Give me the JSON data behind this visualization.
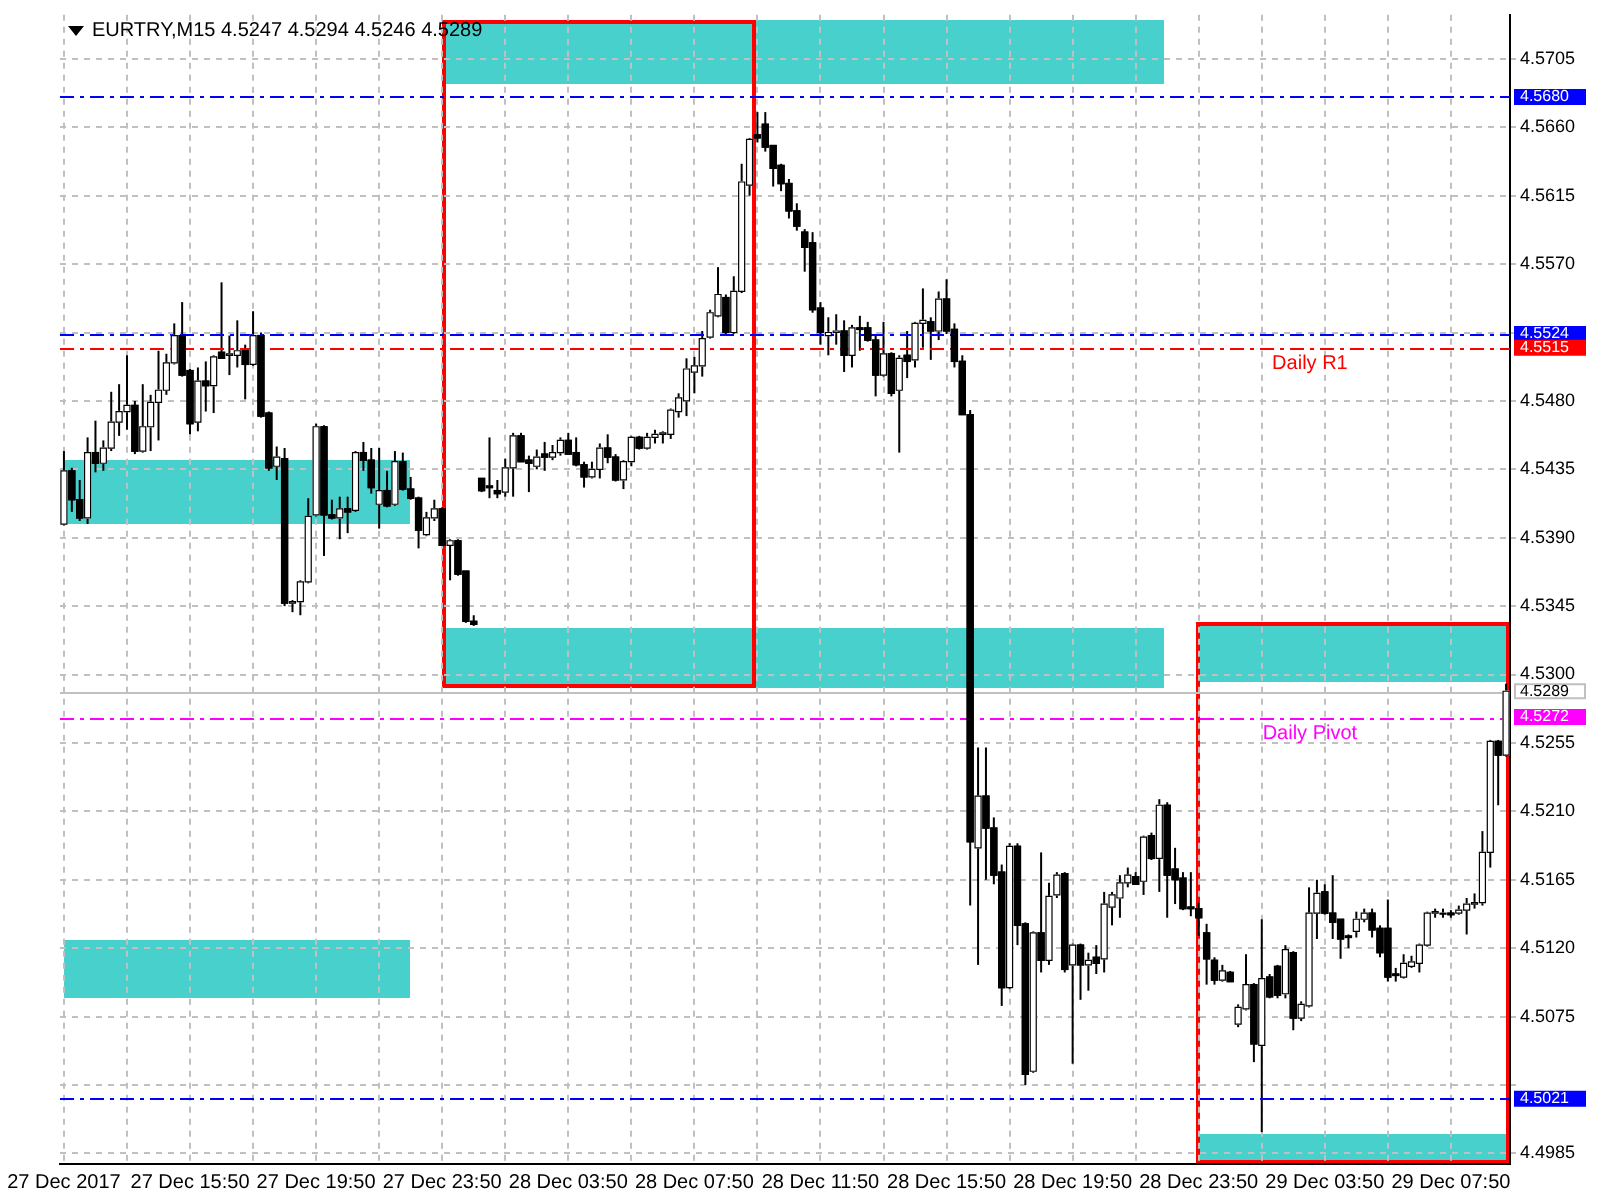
{
  "chart_data": {
    "type": "candlestick",
    "title": "EURTRY,M15 4.5247 4.5294 4.5246 4.5289",
    "color": "#000000",
    "grid": true,
    "categories": [
      "27 Dec 2017",
      null,
      null,
      null,
      null,
      null,
      null,
      null,
      null,
      null,
      null,
      null,
      null,
      null,
      null,
      null,
      "27 Dec 15:50",
      null,
      null,
      null,
      null,
      null,
      null,
      null,
      null,
      null,
      null,
      null,
      null,
      null,
      null,
      null,
      "27 Dec 19:50",
      null,
      null,
      null,
      null,
      null,
      null,
      null,
      null,
      null,
      null,
      null,
      null,
      null,
      null,
      null,
      "27 Dec 23:50",
      null,
      null,
      null,
      null,
      null,
      null,
      null,
      null,
      null,
      null,
      null,
      null,
      null,
      null,
      null,
      "28 Dec 03:50",
      null,
      null,
      null,
      null,
      null,
      null,
      null,
      null,
      null,
      null,
      null,
      null,
      null,
      null,
      null,
      "28 Dec 07:50",
      null,
      null,
      null,
      null,
      null,
      null,
      null,
      null,
      null,
      null,
      null,
      null,
      null,
      null,
      null,
      "28 Dec 11:50",
      null,
      null,
      null,
      null,
      null,
      null,
      null,
      null,
      null,
      null,
      null,
      null,
      null,
      null,
      null,
      "28 Dec 15:50",
      null,
      null,
      null,
      null,
      null,
      null,
      null,
      null,
      null,
      null,
      null,
      null,
      null,
      null,
      null,
      "28 Dec 19:50",
      null,
      null,
      null,
      null,
      null,
      null,
      null,
      null,
      null,
      null,
      null,
      null,
      null,
      null,
      null,
      "28 Dec 23:50",
      null,
      null,
      null,
      null,
      null,
      null,
      null,
      null,
      null,
      null,
      null,
      null,
      null,
      null,
      null,
      "29 Dec 03:50",
      null,
      null,
      null,
      null,
      null,
      null,
      null,
      null,
      null,
      null,
      null,
      null,
      null,
      null,
      null,
      "29 Dec 07:50",
      null,
      null,
      null,
      null,
      null,
      null,
      null
    ],
    "ohlc": [
      [
        4.5399,
        4.5447,
        4.5398,
        4.5434
      ],
      [
        4.5434,
        4.5436,
        4.5407,
        4.5415
      ],
      [
        4.5415,
        4.5428,
        4.5401,
        4.5403
      ],
      [
        4.5403,
        4.5456,
        4.5399,
        4.5446
      ],
      [
        4.5446,
        4.5467,
        4.5433,
        4.5439
      ],
      [
        4.5439,
        4.5454,
        4.5434,
        4.5449
      ],
      [
        4.5449,
        4.5486,
        4.5447,
        4.5466
      ],
      [
        4.5466,
        4.5491,
        4.5457,
        4.5473
      ],
      [
        4.5473,
        4.551,
        4.5461,
        4.5477
      ],
      [
        4.5477,
        4.548,
        4.5445,
        4.5447
      ],
      [
        4.5447,
        4.5491,
        4.5446,
        4.5463
      ],
      [
        4.5463,
        4.5484,
        4.5447,
        4.5479
      ],
      [
        4.5479,
        4.5513,
        4.5454,
        4.5487
      ],
      [
        4.5487,
        4.5511,
        4.5484,
        4.5505
      ],
      [
        4.5505,
        4.5531,
        4.5504,
        4.5523
      ],
      [
        4.5523,
        4.5545,
        4.5496,
        4.5497
      ],
      [
        4.55,
        4.5501,
        4.5458,
        4.5465
      ],
      [
        4.5466,
        4.5502,
        4.546,
        4.5493
      ],
      [
        4.5493,
        4.5506,
        4.5473,
        4.549
      ],
      [
        4.549,
        4.551,
        4.5472,
        4.5509
      ],
      [
        4.5512,
        4.5558,
        4.5508,
        4.5508
      ],
      [
        4.551,
        4.5523,
        4.5497,
        4.5511
      ],
      [
        4.551,
        4.5533,
        4.5502,
        4.5513
      ],
      [
        4.5513,
        4.5517,
        4.5481,
        4.5504
      ],
      [
        4.5504,
        4.5539,
        4.5503,
        4.5523
      ],
      [
        4.5523,
        4.5525,
        4.5469,
        4.547
      ],
      [
        4.5472,
        4.5473,
        4.5434,
        4.5436
      ],
      [
        4.5437,
        4.545,
        4.5428,
        4.5443
      ],
      [
        4.5442,
        4.5449,
        4.5345,
        4.5347
      ],
      [
        4.5347,
        4.5349,
        4.5341,
        4.5348
      ],
      [
        4.5348,
        4.5362,
        4.5339,
        4.5361
      ],
      [
        4.5361,
        4.5416,
        4.536,
        4.5404
      ],
      [
        4.5405,
        4.5465,
        4.5404,
        4.5463
      ],
      [
        4.5463,
        4.5464,
        4.5378,
        4.5405
      ],
      [
        4.5405,
        4.5415,
        4.5402,
        4.5403
      ],
      [
        4.5403,
        4.5417,
        4.5389,
        4.5409
      ],
      [
        4.5409,
        4.5417,
        4.5393,
        4.5407
      ],
      [
        4.5408,
        4.5447,
        4.5407,
        4.5446
      ],
      [
        4.5446,
        4.5453,
        4.5434,
        4.5441
      ],
      [
        4.5441,
        4.5449,
        4.5419,
        4.5423
      ],
      [
        4.5412,
        4.5449,
        4.5396,
        4.5421
      ],
      [
        4.5421,
        4.5434,
        4.541,
        4.5411
      ],
      [
        4.5412,
        4.5447,
        4.5411,
        4.544
      ],
      [
        4.544,
        4.5446,
        4.5421,
        4.5422
      ],
      [
        4.5422,
        4.543,
        4.5415,
        4.5416
      ],
      [
        4.5416,
        4.5417,
        4.5383,
        4.5395
      ],
      [
        4.5392,
        4.5407,
        4.5391,
        4.5403
      ],
      [
        4.5403,
        4.5415,
        4.5401,
        4.5409
      ],
      [
        4.5409,
        4.541,
        4.5385,
        4.5385
      ],
      [
        4.5385,
        4.5389,
        4.5362,
        4.5388
      ],
      [
        4.5388,
        4.5389,
        4.5365,
        4.5366
      ],
      [
        4.5368,
        4.5368,
        4.5334,
        4.5335
      ],
      [
        4.5335,
        4.5339,
        4.5332,
        4.5333
      ],
      [
        4.5429,
        4.5429,
        4.542,
        4.5421
      ],
      [
        4.5424,
        4.5456,
        4.5416,
        4.5423
      ],
      [
        4.5421,
        4.5428,
        4.5416,
        4.5419
      ],
      [
        4.542,
        4.5442,
        4.5417,
        4.5436
      ],
      [
        4.5436,
        4.5459,
        4.5417,
        4.5457
      ],
      [
        4.5457,
        4.5459,
        4.544,
        4.544
      ],
      [
        4.5441,
        4.5444,
        4.542,
        4.5439
      ],
      [
        4.5437,
        4.5448,
        4.5435,
        4.5443
      ],
      [
        4.5445,
        4.5453,
        4.5434,
        4.5443
      ],
      [
        4.5443,
        4.5451,
        4.5441,
        4.5446
      ],
      [
        4.5446,
        4.5456,
        4.5444,
        4.5454
      ],
      [
        4.5454,
        4.5459,
        4.5445,
        4.5445
      ],
      [
        4.5446,
        4.5456,
        4.5437,
        4.5438
      ],
      [
        4.5438,
        4.544,
        4.5423,
        4.543
      ],
      [
        4.543,
        4.544,
        4.5429,
        4.5435
      ],
      [
        4.5435,
        4.5452,
        4.5429,
        4.5449
      ],
      [
        4.5449,
        4.5458,
        4.5439,
        4.5443
      ],
      [
        4.5443,
        4.5445,
        4.5427,
        4.5428
      ],
      [
        4.5428,
        4.5441,
        4.5422,
        4.544
      ],
      [
        4.544,
        4.5457,
        4.5437,
        4.5456
      ],
      [
        4.5456,
        4.5457,
        4.5448,
        4.5449
      ],
      [
        4.5449,
        4.5459,
        4.5448,
        4.5456
      ],
      [
        4.5456,
        4.5461,
        4.5452,
        4.5458
      ],
      [
        4.5458,
        4.546,
        4.5452,
        4.5459
      ],
      [
        4.5458,
        4.5475,
        4.5455,
        4.5474
      ],
      [
        4.5473,
        4.5485,
        4.5469,
        4.5482
      ],
      [
        4.548,
        4.5508,
        4.547,
        4.5501
      ],
      [
        4.5499,
        4.5509,
        4.5485,
        4.5503
      ],
      [
        4.5503,
        4.5526,
        4.5496,
        4.5521
      ],
      [
        4.5522,
        4.554,
        4.5521,
        4.5538
      ],
      [
        4.5536,
        4.5568,
        4.5535,
        4.555
      ],
      [
        4.5548,
        4.555,
        4.5524,
        4.5525
      ],
      [
        4.5525,
        4.5562,
        4.5524,
        4.5552
      ],
      [
        4.5552,
        4.5636,
        4.5551,
        4.5624
      ],
      [
        4.5622,
        4.5653,
        4.5615,
        4.5652
      ],
      [
        4.5655,
        4.567,
        4.565,
        4.5653
      ],
      [
        4.5662,
        4.567,
        4.5644,
        4.5647
      ],
      [
        4.5648,
        4.5648,
        4.5621,
        4.5633
      ],
      [
        4.5635,
        4.5636,
        4.5618,
        4.5623
      ],
      [
        4.5623,
        4.5626,
        4.56,
        4.5605
      ],
      [
        4.5605,
        4.561,
        4.5592,
        4.5595
      ],
      [
        4.5591,
        4.5593,
        4.5565,
        4.5581
      ],
      [
        4.5584,
        4.5591,
        4.5538,
        4.554
      ],
      [
        4.5541,
        4.5545,
        4.5517,
        4.5525
      ],
      [
        4.5523,
        4.5535,
        4.551,
        4.5525
      ],
      [
        4.5525,
        4.5537,
        4.5517,
        4.5526
      ],
      [
        4.5526,
        4.5533,
        4.5499,
        4.551
      ],
      [
        4.551,
        4.553,
        4.5502,
        4.5528
      ],
      [
        4.5528,
        4.5536,
        4.5513,
        4.5527
      ],
      [
        4.5528,
        4.5532,
        4.5519,
        4.552
      ],
      [
        4.552,
        4.5523,
        4.5483,
        4.5497
      ],
      [
        4.5497,
        4.5532,
        4.5496,
        4.5511
      ],
      [
        4.5511,
        4.5512,
        4.5483,
        4.5485
      ],
      [
        4.5487,
        4.551,
        4.5446,
        4.5508
      ],
      [
        4.551,
        4.5526,
        4.5495,
        4.5506
      ],
      [
        4.5507,
        4.5532,
        4.5502,
        4.5531
      ],
      [
        4.5531,
        4.5554,
        4.5515,
        4.5533
      ],
      [
        4.5532,
        4.5535,
        4.5507,
        4.5526
      ],
      [
        4.5526,
        4.5552,
        4.552,
        4.5547
      ],
      [
        4.5547,
        4.556,
        4.5524,
        4.5526
      ],
      [
        4.5527,
        4.5531,
        4.5502,
        4.5506
      ],
      [
        4.5506,
        4.551,
        4.5471,
        4.5471
      ],
      [
        4.5471,
        4.5474,
        4.5148,
        4.519
      ],
      [
        4.5186,
        4.5252,
        4.5109,
        4.522
      ],
      [
        4.522,
        4.5252,
        4.5165,
        4.5199
      ],
      [
        4.5199,
        4.5206,
        4.5162,
        4.5168
      ],
      [
        4.517,
        4.5175,
        4.5082,
        4.5094
      ],
      [
        4.5094,
        4.5189,
        4.5093,
        4.5187
      ],
      [
        4.5187,
        4.5189,
        4.5122,
        4.5135
      ],
      [
        4.5136,
        4.5137,
        4.503,
        4.5037
      ],
      [
        4.5039,
        4.5131,
        4.5038,
        4.513
      ],
      [
        4.513,
        4.5183,
        4.5104,
        4.5112
      ],
      [
        4.5112,
        4.5163,
        4.5109,
        4.5154
      ],
      [
        4.5155,
        4.517,
        4.5153,
        4.5168
      ],
      [
        4.5169,
        4.517,
        4.5104,
        4.5106
      ],
      [
        4.5109,
        4.5123,
        4.5044,
        4.5122
      ],
      [
        4.5122,
        4.5123,
        4.5086,
        4.5109
      ],
      [
        4.5109,
        4.5117,
        4.5092,
        4.5112
      ],
      [
        4.5114,
        4.5122,
        4.5103,
        4.511
      ],
      [
        4.5113,
        4.5157,
        4.5104,
        4.5149
      ],
      [
        4.5147,
        4.5157,
        4.5135,
        4.5155
      ],
      [
        4.5153,
        4.5168,
        4.514,
        4.5163
      ],
      [
        4.5163,
        4.5173,
        4.516,
        4.5168
      ],
      [
        4.5167,
        4.517,
        4.5162,
        4.5162
      ],
      [
        4.5164,
        4.5194,
        4.5155,
        4.5193
      ],
      [
        4.5194,
        4.5196,
        4.5178,
        4.5179
      ],
      [
        4.5179,
        4.5218,
        4.5157,
        4.5214
      ],
      [
        4.5214,
        4.5216,
        4.514,
        4.5168
      ],
      [
        4.5172,
        4.5186,
        4.5149,
        4.5165
      ],
      [
        4.5166,
        4.517,
        4.5145,
        4.5146
      ],
      [
        4.5147,
        4.517,
        4.5141,
        4.5146
      ],
      [
        4.5146,
        4.515,
        4.5128,
        4.514
      ],
      [
        4.513,
        4.5136,
        4.5096,
        4.5113
      ],
      [
        4.5112,
        4.5114,
        4.5096,
        4.5099
      ],
      [
        4.5099,
        4.5109,
        4.5098,
        4.5105
      ],
      [
        4.5104,
        4.5105,
        4.5098,
        4.5098
      ],
      [
        4.507,
        4.5083,
        4.5068,
        4.5081
      ],
      [
        4.508,
        4.5116,
        4.5079,
        4.5096
      ],
      [
        4.5096,
        4.5097,
        4.5045,
        4.5057
      ],
      [
        4.5056,
        4.5139,
        4.4999,
        4.51
      ],
      [
        4.5101,
        4.5103,
        4.5087,
        4.5088
      ],
      [
        4.5108,
        4.5109,
        4.5087,
        4.5089
      ],
      [
        4.509,
        4.5122,
        4.5087,
        4.5119
      ],
      [
        4.5117,
        4.5118,
        4.5066,
        4.5074
      ],
      [
        4.5074,
        4.5085,
        4.5072,
        4.5083
      ],
      [
        4.5082,
        4.516,
        4.5081,
        4.5143
      ],
      [
        4.5143,
        4.5165,
        4.5126,
        4.5156
      ],
      [
        4.5157,
        4.5162,
        4.5142,
        4.5143
      ],
      [
        4.5143,
        4.5168,
        4.5126,
        4.5137
      ],
      [
        4.5139,
        4.5139,
        4.5113,
        4.5126
      ],
      [
        4.5128,
        4.5129,
        4.512,
        4.5127
      ],
      [
        4.5131,
        4.5144,
        4.5127,
        4.5139
      ],
      [
        4.5139,
        4.5146,
        4.5137,
        4.5143
      ],
      [
        4.5143,
        4.5146,
        4.5127,
        4.5132
      ],
      [
        4.5133,
        4.5135,
        4.5114,
        4.5117
      ],
      [
        4.5133,
        4.5152,
        4.5098,
        4.5101
      ],
      [
        4.5103,
        4.5107,
        4.5098,
        4.5102
      ],
      [
        4.5101,
        4.5116,
        4.51,
        4.511
      ],
      [
        4.5108,
        4.5115,
        4.5107,
        4.5111
      ],
      [
        4.511,
        4.5123,
        4.5104,
        4.5122
      ],
      [
        4.5122,
        4.5144,
        4.5121,
        4.5143
      ],
      [
        4.5143,
        4.5146,
        4.514,
        4.5144
      ],
      [
        4.5143,
        4.5146,
        4.514,
        4.5143
      ],
      [
        4.5143,
        4.5145,
        4.514,
        4.5142
      ],
      [
        4.5143,
        4.5148,
        4.5142,
        4.5145
      ],
      [
        4.5145,
        4.5153,
        4.5129,
        4.5149
      ],
      [
        4.5149,
        4.5156,
        4.5146,
        4.515
      ],
      [
        4.515,
        4.5197,
        4.5148,
        4.5183
      ],
      [
        4.5183,
        4.5257,
        4.5173,
        4.5256
      ],
      [
        4.5256,
        4.5257,
        4.5214,
        4.5247
      ],
      [
        4.5247,
        4.5294,
        4.5246,
        4.5289
      ]
    ],
    "colors": [
      "#ffffff",
      "#000000",
      "#000000",
      "#ffffff",
      "#000000",
      "#ffffff",
      "#ffffff",
      "#ffffff",
      "#ffffff",
      "#000000",
      "#ffffff",
      "#ffffff",
      "#ffffff",
      "#ffffff",
      "#ffffff",
      "#000000",
      "#000000",
      "#ffffff",
      "#000000",
      "#ffffff",
      "#000000",
      "#ffffff",
      "#ffffff",
      "#000000",
      "#ffffff",
      "#000000",
      "#000000",
      "#ffffff",
      "#000000",
      "#ffffff",
      "#ffffff",
      "#ffffff",
      "#ffffff",
      "#000000",
      "#000000",
      "#ffffff",
      "#000000",
      "#ffffff",
      "#000000",
      "#000000",
      "#ffffff",
      "#000000",
      "#ffffff",
      "#000000",
      "#000000",
      "#000000",
      "#ffffff",
      "#ffffff",
      "#000000",
      "#ffffff",
      "#000000",
      "#000000",
      "#000000",
      "#000000",
      "#000000",
      "#000000",
      "#ffffff",
      "#ffffff",
      "#000000",
      "#000000",
      "#ffffff",
      "#000000",
      "#ffffff",
      "#ffffff",
      "#000000",
      "#000000",
      "#000000",
      "#ffffff",
      "#ffffff",
      "#000000",
      "#000000",
      "#ffffff",
      "#ffffff",
      "#000000",
      "#ffffff",
      "#ffffff",
      "#ffffff",
      "#ffffff",
      "#ffffff",
      "#ffffff",
      "#ffffff",
      "#ffffff",
      "#ffffff",
      "#ffffff",
      "#000000",
      "#ffffff",
      "#ffffff",
      "#ffffff",
      "#000000",
      "#000000",
      "#000000",
      "#000000",
      "#000000",
      "#000000",
      "#000000",
      "#000000",
      "#000000",
      "#ffffff",
      "#ffffff",
      "#000000",
      "#ffffff",
      "#000000",
      "#000000",
      "#000000",
      "#ffffff",
      "#000000",
      "#ffffff",
      "#000000",
      "#ffffff",
      "#ffffff",
      "#000000",
      "#ffffff",
      "#000000",
      "#000000",
      "#000000",
      "#000000",
      "#ffffff",
      "#000000",
      "#000000",
      "#000000",
      "#ffffff",
      "#000000",
      "#000000",
      "#ffffff",
      "#000000",
      "#ffffff",
      "#ffffff",
      "#000000",
      "#ffffff",
      "#000000",
      "#ffffff",
      "#000000",
      "#ffffff",
      "#ffffff",
      "#ffffff",
      "#ffffff",
      "#000000",
      "#ffffff",
      "#000000",
      "#ffffff",
      "#000000",
      "#000000",
      "#000000",
      "#000000",
      "#000000",
      "#000000",
      "#000000",
      "#ffffff",
      "#000000",
      "#ffffff",
      "#ffffff",
      "#000000",
      "#ffffff",
      "#000000",
      "#000000",
      "#ffffff",
      "#000000",
      "#ffffff",
      "#ffffff",
      "#ffffff",
      "#000000",
      "#000000",
      "#000000",
      "#000000",
      "#ffffff",
      "#ffffff",
      "#000000",
      "#000000",
      "#000000",
      "#000000",
      "#ffffff",
      "#ffffff",
      "#ffffff",
      "#ffffff",
      "#ffffff",
      "#ffffff",
      "#000000",
      "#ffffff",
      "#ffffff",
      "#ffffff",
      "#ffffff",
      "#ffffff",
      "#000000",
      "#ffffff"
    ],
    "annotations": [
      "4.5680",
      "4.5524",
      "4.5515",
      "4.5289",
      "4.5272",
      "4.5021"
    ],
    "ylim": [
      4.4978,
      4.5734
    ],
    "yticks": [
      4.4985,
      {
        "value": 4.503,
        "label": null
      },
      4.5075,
      {
        "value": 4.512,
        "label": "4.5120"
      },
      4.5165,
      {
        "value": 4.521,
        "label": "4.5210"
      },
      4.5255,
      {
        "value": 4.53,
        "label": "4.5300"
      },
      4.5345,
      {
        "value": 4.539,
        "label": "4.5390"
      },
      4.5435,
      {
        "value": 4.548,
        "label": "4.5480"
      },
      {
        "value": 4.5525,
        "label": null
      },
      {
        "value": 4.557,
        "label": "4.5570"
      },
      4.5615,
      {
        "value": 4.566,
        "label": "4.5660"
      },
      4.5705
    ],
    "ref_lines": [
      {
        "axis": "y",
        "value": 4.568,
        "color": "#0000ff",
        "line_style": "dashed"
      },
      {
        "axis": "y",
        "value": 4.5524,
        "color": "#0000ff",
        "line_style": "dashed"
      },
      {
        "axis": "y",
        "value": 4.5515,
        "label": "Daily R1",
        "color": "#ff0000",
        "line_style": "dashed"
      },
      {
        "axis": "y",
        "value": 4.5289,
        "color": "#c0c0c0",
        "line_style": "solid"
      },
      {
        "axis": "y",
        "value": 4.5272,
        "label": "Daily Pivot",
        "color": "#ff00ff",
        "line_style": "dashed"
      },
      {
        "axis": "y",
        "value": 4.5021,
        "color": "#0000ff",
        "line_style": "dashed"
      }
    ]
  }
}
